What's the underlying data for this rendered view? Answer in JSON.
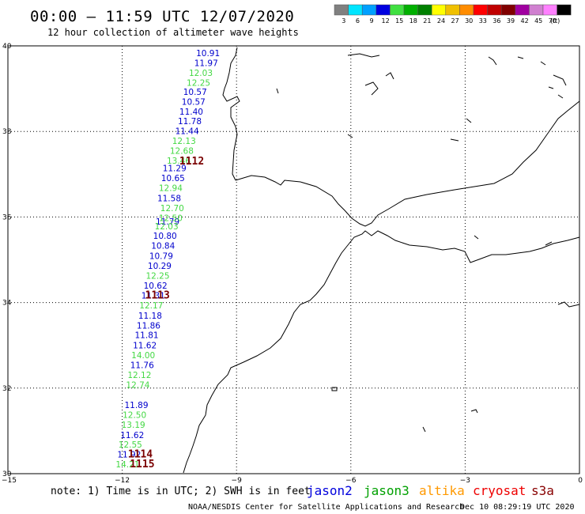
{
  "header": {
    "title": "00:00 – 11:59 UTC 12/07/2020",
    "subtitle": "12 hour collection of altimeter wave heights"
  },
  "legend": {
    "unit": "(ft)",
    "bins": [
      {
        "label": "3",
        "color": "#808080"
      },
      {
        "label": "6",
        "color": "#00e5ff"
      },
      {
        "label": "9",
        "color": "#00a0ff"
      },
      {
        "label": "12",
        "color": "#0000e0"
      },
      {
        "label": "15",
        "color": "#40e040"
      },
      {
        "label": "18",
        "color": "#00b000"
      },
      {
        "label": "21",
        "color": "#008000"
      },
      {
        "label": "24",
        "color": "#ffff00"
      },
      {
        "label": "27",
        "color": "#f0c000"
      },
      {
        "label": "30",
        "color": "#ff8c00"
      },
      {
        "label": "33",
        "color": "#ff0000"
      },
      {
        "label": "36",
        "color": "#c00000"
      },
      {
        "label": "39",
        "color": "#800000"
      },
      {
        "label": "42",
        "color": "#a000a0"
      },
      {
        "label": "45",
        "color": "#d080d0"
      },
      {
        "label": "70",
        "color": "#ff80ff"
      },
      {
        "label": "",
        "color": "#000000"
      }
    ]
  },
  "chart_data": {
    "type": "scatter",
    "title": "00:00 – 11:59 UTC 12/07/2020",
    "subtitle": "12 hour collection of altimeter wave heights",
    "xlim": [
      -15,
      0
    ],
    "ylim": [
      30,
      40
    ],
    "xticks": [
      -15,
      -12,
      -9,
      -6,
      -3,
      0
    ],
    "yticks": [
      30,
      32,
      34,
      36,
      38,
      40
    ],
    "xtick_labels": [
      "−15",
      "−12",
      "−9",
      "−6",
      "−3",
      "0"
    ],
    "ytick_labels": [
      "30",
      "32",
      "34",
      "36",
      "38",
      "40"
    ],
    "grid": true,
    "unit": "ft",
    "series": [
      {
        "name": "jason2",
        "color": "#0000cc",
        "points": [
          {
            "lon": -10.06,
            "lat": 39.83,
            "swh": 10.91
          },
          {
            "lon": -10.11,
            "lat": 39.6,
            "swh": 11.97
          },
          {
            "lon": -10.4,
            "lat": 38.93,
            "swh": 10.57
          },
          {
            "lon": -10.44,
            "lat": 38.7,
            "swh": 10.57
          },
          {
            "lon": -10.5,
            "lat": 38.47,
            "swh": 11.4
          },
          {
            "lon": -10.54,
            "lat": 38.24,
            "swh": 11.78
          },
          {
            "lon": -10.61,
            "lat": 38.01,
            "swh": 11.44
          },
          {
            "lon": -10.94,
            "lat": 37.14,
            "swh": 11.29
          },
          {
            "lon": -10.98,
            "lat": 36.91,
            "swh": 10.65
          },
          {
            "lon": -11.08,
            "lat": 36.44,
            "swh": 11.58
          },
          {
            "lon": -11.12,
            "lat": 35.9,
            "swh": 11.79
          },
          {
            "lon": -11.19,
            "lat": 35.56,
            "swh": 10.8
          },
          {
            "lon": -11.24,
            "lat": 35.33,
            "swh": 10.84
          },
          {
            "lon": -11.29,
            "lat": 35.09,
            "swh": 10.79
          },
          {
            "lon": -11.33,
            "lat": 34.86,
            "swh": 10.29
          },
          {
            "lon": -11.44,
            "lat": 34.4,
            "swh": 10.62
          },
          {
            "lon": -11.5,
            "lat": 34.17,
            "swh": 11.31
          },
          {
            "lon": -11.58,
            "lat": 33.7,
            "swh": 11.18
          },
          {
            "lon": -11.62,
            "lat": 33.47,
            "swh": 11.86
          },
          {
            "lon": -11.67,
            "lat": 33.24,
            "swh": 11.81
          },
          {
            "lon": -11.72,
            "lat": 33.0,
            "swh": 11.62
          },
          {
            "lon": -11.79,
            "lat": 32.54,
            "swh": 11.76
          },
          {
            "lon": -11.94,
            "lat": 31.61,
            "swh": 11.89
          },
          {
            "lon": -12.05,
            "lat": 30.91,
            "swh": 11.62
          },
          {
            "lon": -12.13,
            "lat": 30.45,
            "swh": 11.92
          }
        ]
      },
      {
        "name": "jason3",
        "color": "#44d844",
        "points": [
          {
            "lon": -10.25,
            "lat": 39.37,
            "swh": 12.03
          },
          {
            "lon": -10.31,
            "lat": 39.14,
            "swh": 12.25
          },
          {
            "lon": -10.69,
            "lat": 37.78,
            "swh": 12.13
          },
          {
            "lon": -10.75,
            "lat": 37.55,
            "swh": 12.68
          },
          {
            "lon": -10.83,
            "lat": 37.32,
            "swh": 13.46
          },
          {
            "lon": -11.04,
            "lat": 36.68,
            "swh": 12.94
          },
          {
            "lon": -11.0,
            "lat": 36.21,
            "swh": 12.7
          },
          {
            "lon": -11.04,
            "lat": 35.98,
            "swh": 12.5
          },
          {
            "lon": -11.15,
            "lat": 35.79,
            "swh": 12.03
          },
          {
            "lon": -11.38,
            "lat": 34.63,
            "swh": 12.25
          },
          {
            "lon": -11.55,
            "lat": 33.94,
            "swh": 12.17
          },
          {
            "lon": -11.76,
            "lat": 32.77,
            "swh": 14.0
          },
          {
            "lon": -11.86,
            "lat": 32.31,
            "swh": 12.12
          },
          {
            "lon": -11.9,
            "lat": 32.08,
            "swh": 12.74
          },
          {
            "lon": -11.99,
            "lat": 31.38,
            "swh": 12.5
          },
          {
            "lon": -12.02,
            "lat": 31.15,
            "swh": 13.19
          },
          {
            "lon": -12.1,
            "lat": 30.68,
            "swh": 12.55
          },
          {
            "lon": -12.17,
            "lat": 30.22,
            "swh": 14.21
          }
        ]
      }
    ],
    "pass_labels": [
      {
        "label": "1112",
        "lon": -10.5,
        "lat": 37.3
      },
      {
        "label": "1113",
        "lon": -11.4,
        "lat": 34.17
      },
      {
        "label": "1114",
        "lon": -11.85,
        "lat": 30.45
      },
      {
        "label": "1115",
        "lon": -11.8,
        "lat": 30.22
      }
    ]
  },
  "note": "note: 1) Time is in UTC; 2) SWH is in feet",
  "satellites": [
    {
      "name": "jason2",
      "color": "#0000dd"
    },
    {
      "name": "jason3",
      "color": "#00a000"
    },
    {
      "name": "altika",
      "color": "#ff9900"
    },
    {
      "name": "cryosat",
      "color": "#ee0000"
    },
    {
      "name": "s3a",
      "color": "#880000"
    }
  ],
  "credit": "NOAA/NESDIS Center for Satellite Applications and Research",
  "timestamp": "Dec 10 08:29:19 UTC 2020"
}
